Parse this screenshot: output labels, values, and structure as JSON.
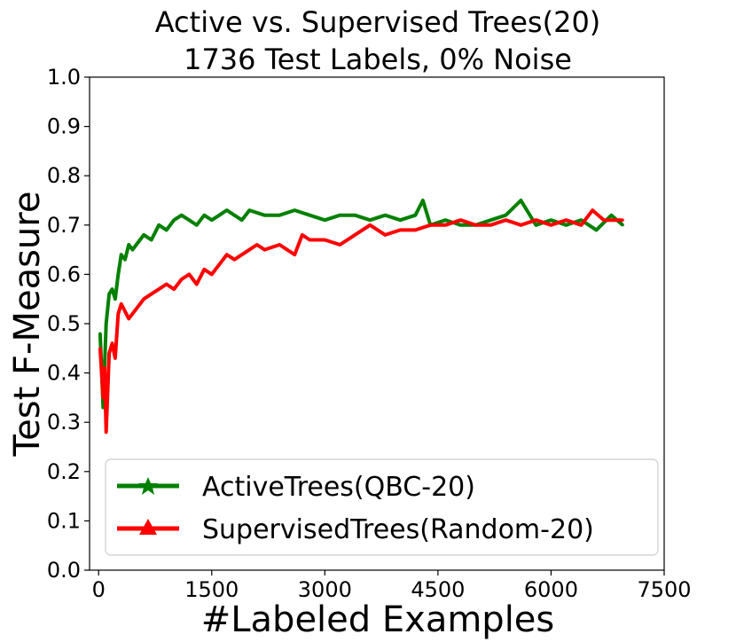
{
  "chart_data": {
    "type": "line",
    "title": "Active vs. Supervised Trees(20)",
    "subtitle": "1736 Test Labels, 0% Noise",
    "xlabel": "#Labeled Examples",
    "ylabel": "Test F-Measure",
    "xlim": [
      -120,
      7500
    ],
    "ylim": [
      0.0,
      1.0
    ],
    "xticks": [
      0,
      1500,
      3000,
      4500,
      6000,
      7500
    ],
    "yticks": [
      0.0,
      0.1,
      0.2,
      0.3,
      0.4,
      0.5,
      0.6,
      0.7,
      0.8,
      0.9,
      1.0
    ],
    "xtick_labels": [
      "0",
      "1500",
      "3000",
      "4500",
      "6000",
      "7500"
    ],
    "ytick_labels": [
      "0.0",
      "0.1",
      "0.2",
      "0.3",
      "0.4",
      "0.5",
      "0.6",
      "0.7",
      "0.8",
      "0.9",
      "1.0"
    ],
    "grid": false,
    "legend_position": "lower-right",
    "series": [
      {
        "name": "ActiveTrees(QBC-20)",
        "color": "#008000",
        "marker": "star",
        "x": [
          20,
          60,
          100,
          140,
          180,
          220,
          260,
          300,
          350,
          400,
          450,
          500,
          600,
          700,
          800,
          900,
          1000,
          1100,
          1200,
          1300,
          1400,
          1500,
          1600,
          1700,
          1800,
          1900,
          2000,
          2200,
          2400,
          2600,
          2800,
          3000,
          3200,
          3400,
          3600,
          3800,
          4000,
          4200,
          4300,
          4400,
          4600,
          4800,
          5000,
          5200,
          5400,
          5600,
          5800,
          6000,
          6200,
          6400,
          6600,
          6800,
          6950
        ],
        "y": [
          0.48,
          0.33,
          0.5,
          0.56,
          0.57,
          0.55,
          0.6,
          0.64,
          0.63,
          0.66,
          0.65,
          0.66,
          0.68,
          0.67,
          0.7,
          0.69,
          0.71,
          0.72,
          0.71,
          0.7,
          0.72,
          0.71,
          0.72,
          0.73,
          0.72,
          0.71,
          0.73,
          0.72,
          0.72,
          0.73,
          0.72,
          0.71,
          0.72,
          0.72,
          0.71,
          0.72,
          0.71,
          0.72,
          0.75,
          0.7,
          0.71,
          0.7,
          0.7,
          0.71,
          0.72,
          0.75,
          0.7,
          0.71,
          0.7,
          0.71,
          0.69,
          0.72,
          0.7
        ]
      },
      {
        "name": "SupervisedTrees(Random-20)",
        "color": "#ff0000",
        "marker": "triangle",
        "x": [
          20,
          60,
          80,
          100,
          140,
          180,
          220,
          260,
          300,
          400,
          500,
          600,
          700,
          800,
          900,
          1000,
          1100,
          1200,
          1300,
          1400,
          1500,
          1600,
          1700,
          1800,
          1900,
          2000,
          2100,
          2200,
          2400,
          2600,
          2700,
          2800,
          3000,
          3200,
          3400,
          3600,
          3800,
          4000,
          4200,
          4400,
          4600,
          4800,
          5000,
          5200,
          5400,
          5600,
          5800,
          6000,
          6200,
          6400,
          6550,
          6700,
          6950
        ],
        "y": [
          0.45,
          0.35,
          0.41,
          0.28,
          0.44,
          0.46,
          0.43,
          0.52,
          0.54,
          0.51,
          0.53,
          0.55,
          0.56,
          0.57,
          0.58,
          0.57,
          0.59,
          0.6,
          0.58,
          0.61,
          0.6,
          0.62,
          0.64,
          0.63,
          0.64,
          0.65,
          0.66,
          0.65,
          0.66,
          0.64,
          0.68,
          0.67,
          0.67,
          0.66,
          0.68,
          0.7,
          0.68,
          0.69,
          0.69,
          0.7,
          0.7,
          0.71,
          0.7,
          0.7,
          0.71,
          0.7,
          0.71,
          0.7,
          0.71,
          0.7,
          0.73,
          0.71,
          0.71
        ]
      }
    ]
  }
}
